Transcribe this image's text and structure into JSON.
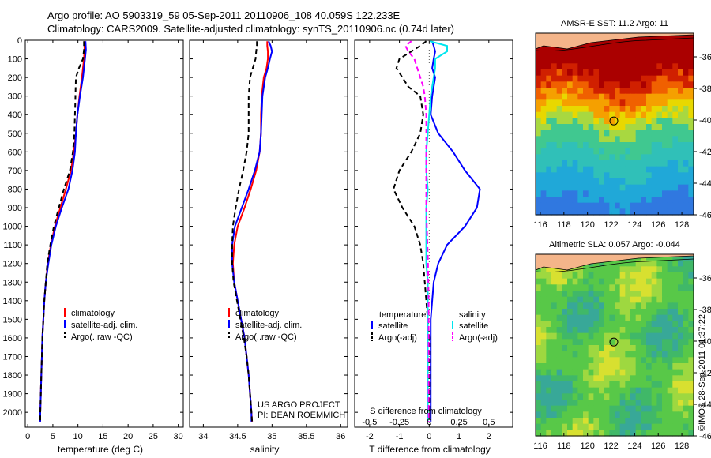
{
  "header": {
    "line1": "Argo profile: AO 5903319_59 05-Sep-2011 20110906_108 40.059S 122.233E",
    "line2": "Climatology: CARS2009. Satellite-adjusted climatology: synTS_20110906.nc (0.74d later)"
  },
  "credit": "©IMOS 28-Sep-2011 01:37:22",
  "colors": {
    "climatology": "#ff0000",
    "satellite": "#0000ff",
    "argo": "#000000",
    "sat_salinity": "#00e5ee",
    "argo_salinity": "#ff00ff",
    "land": "#f4b58a"
  },
  "chart_data": [
    {
      "type": "line",
      "name": "temperature-profile",
      "xlabel": "temperature (deg C)",
      "ylabel": "",
      "xlim": [
        -0.5,
        31
      ],
      "ylim": [
        2080,
        0
      ],
      "xticks": [
        0,
        5,
        10,
        15,
        20,
        25,
        30
      ],
      "yticks": [
        0,
        100,
        200,
        300,
        400,
        500,
        600,
        700,
        800,
        900,
        1000,
        1100,
        1200,
        1300,
        1400,
        1500,
        1600,
        1700,
        1800,
        1900,
        2000
      ],
      "depths": [
        5,
        50,
        100,
        150,
        200,
        300,
        400,
        500,
        600,
        700,
        800,
        900,
        1000,
        1100,
        1200,
        1300,
        1400,
        1500,
        1600,
        1700,
        1800,
        1900,
        2000,
        2050
      ],
      "series": [
        {
          "name": "climatology",
          "color": "#ff0000",
          "dash": "",
          "values": [
            11.3,
            11.3,
            11.2,
            11.0,
            10.8,
            10.3,
            9.9,
            9.6,
            9.2,
            8.6,
            7.6,
            6.5,
            5.4,
            4.6,
            4.0,
            3.6,
            3.3,
            3.1,
            2.9,
            2.8,
            2.7,
            2.6,
            2.5,
            2.5
          ]
        },
        {
          "name": "satellite-adj. clim.",
          "color": "#0000ff",
          "dash": "",
          "values": [
            11.5,
            11.6,
            11.4,
            11.2,
            11.0,
            10.4,
            9.9,
            9.6,
            9.4,
            8.9,
            8.1,
            6.8,
            5.6,
            4.7,
            4.1,
            3.6,
            3.3,
            3.1,
            2.9,
            2.8,
            2.7,
            2.6,
            2.5,
            2.5
          ]
        },
        {
          "name": "Argo(..raw -QC)",
          "color": "#000000",
          "dash": "6,4",
          "values": [
            11.2,
            11.2,
            11.0,
            10.2,
            9.6,
            9.5,
            9.4,
            9.3,
            9.0,
            8.4,
            7.2,
            6.2,
            5.2,
            4.5,
            3.9,
            3.6,
            3.3,
            3.1,
            2.9,
            2.8,
            2.7,
            2.6,
            2.5,
            2.5
          ]
        }
      ],
      "legend": {
        "placement": "lower-middle",
        "entries": [
          "climatology",
          "satellite-adj. clim.",
          "Argo(..raw -QC)"
        ]
      }
    },
    {
      "type": "line",
      "name": "salinity-profile",
      "xlabel": "salinity",
      "ylabel": "",
      "xlim": [
        33.8,
        36.1
      ],
      "ylim": [
        2080,
        0
      ],
      "xticks": [
        34,
        34.5,
        35,
        35.5,
        36
      ],
      "depths": [
        5,
        30,
        60,
        100,
        150,
        200,
        300,
        400,
        500,
        600,
        700,
        800,
        900,
        1000,
        1100,
        1200,
        1300,
        1400,
        1500,
        1600,
        1700,
        1800,
        1900,
        2000,
        2050
      ],
      "series": [
        {
          "name": "climatology",
          "color": "#ff0000",
          "dash": "",
          "values": [
            34.93,
            34.93,
            34.94,
            34.94,
            34.92,
            34.88,
            34.85,
            34.84,
            34.84,
            34.82,
            34.77,
            34.69,
            34.6,
            34.5,
            34.45,
            34.43,
            34.45,
            34.5,
            34.55,
            34.6,
            34.63,
            34.66,
            34.68,
            34.7,
            34.71
          ]
        },
        {
          "name": "satellite-adj. clim.",
          "color": "#0000ff",
          "dash": "",
          "values": [
            34.95,
            34.98,
            35.0,
            34.97,
            34.94,
            34.9,
            34.86,
            34.85,
            34.84,
            34.82,
            34.75,
            34.66,
            34.56,
            34.46,
            34.42,
            34.42,
            34.45,
            34.5,
            34.55,
            34.6,
            34.63,
            34.66,
            34.68,
            34.7,
            34.7
          ]
        },
        {
          "name": "Argo(..raw -QC)",
          "color": "#000000",
          "dash": "6,4",
          "values": [
            34.78,
            34.78,
            34.77,
            34.76,
            34.72,
            34.68,
            34.66,
            34.66,
            34.66,
            34.63,
            34.58,
            34.52,
            34.47,
            34.43,
            34.42,
            34.42,
            34.44,
            34.49,
            34.54,
            34.59,
            34.63,
            34.66,
            34.68,
            34.7,
            34.71
          ]
        }
      ],
      "legend": {
        "placement": "lower-middle",
        "entries": [
          "climatology",
          "satellite-adj. clim.",
          "Argo(..raw -QC)"
        ]
      },
      "annotation": [
        "US ARGO PROJECT",
        "PI: DEAN ROEMMICH"
      ]
    },
    {
      "type": "line",
      "name": "difference-profile",
      "xlabel": "T difference from climatology",
      "xlabel_top": "S difference from climatology",
      "xlim": [
        -2.5,
        2.8
      ],
      "ylim": [
        2080,
        0
      ],
      "xticks": [
        -2,
        -1,
        0,
        1,
        2
      ],
      "xticks_s": [
        "-0.5",
        "-0.25",
        "0",
        "0.25",
        "0.5"
      ],
      "xticks_s_pos": [
        -2,
        -1,
        0,
        1,
        2
      ],
      "depths": [
        5,
        30,
        60,
        100,
        150,
        200,
        250,
        300,
        400,
        500,
        600,
        700,
        800,
        900,
        1000,
        1100,
        1200,
        1300,
        1400,
        1500,
        1600,
        1700,
        1800,
        1900,
        2000,
        2050
      ],
      "series": [
        {
          "name": "temperature satellite",
          "color": "#0000ff",
          "dash": "",
          "values": [
            0.1,
            0.15,
            0.2,
            0.15,
            0.1,
            0.2,
            0.15,
            0.1,
            0.05,
            0.3,
            0.8,
            1.2,
            1.7,
            1.6,
            1.2,
            0.6,
            0.3,
            0.15,
            0.1,
            0.05,
            0.05,
            0.05,
            0.05,
            0.05,
            0.05,
            0.05
          ]
        },
        {
          "name": "temperature Argo(-adj)",
          "color": "#000000",
          "dash": "6,4",
          "values": [
            -0.1,
            -0.3,
            -0.6,
            -1.0,
            -1.1,
            -0.9,
            -0.7,
            -0.3,
            -0.2,
            -0.3,
            -0.6,
            -1.0,
            -1.2,
            -0.9,
            -0.5,
            -0.3,
            -0.2,
            -0.15,
            -0.1,
            -0.05,
            0,
            0,
            0,
            0,
            0,
            0
          ]
        },
        {
          "name": "salinity satellite",
          "color": "#00e5ee",
          "dash": "",
          "values": [
            0.02,
            0.6,
            0.6,
            0.2,
            0.2,
            0.15,
            0.1,
            0.05,
            0.0,
            -0.05,
            -0.1,
            -0.1,
            -0.05,
            -0.1,
            -0.1,
            -0.1,
            -0.1,
            -0.05,
            -0.05,
            -0.05,
            -0.05,
            -0.05,
            -0.05,
            -0.05,
            -0.05,
            -0.05
          ]
        },
        {
          "name": "salinity Argo(-adj)",
          "color": "#ff00ff",
          "dash": "6,4",
          "values": [
            -0.6,
            -0.8,
            -0.7,
            -0.5,
            -0.4,
            -0.3,
            -0.2,
            -0.15,
            -0.1,
            -0.1,
            -0.1,
            -0.1,
            -0.1,
            -0.1,
            -0.08,
            -0.06,
            -0.04,
            -0.03,
            -0.02,
            -0.02,
            -0.02,
            -0.02,
            -0.02,
            -0.02,
            -0.02,
            -0.02
          ]
        }
      ],
      "legend": {
        "placement": "lower-middle",
        "col1_title": "temperature",
        "col2_title": "salinity",
        "entries": [
          "satellite",
          "Argo(-adj)",
          "satellite",
          "Argo(-adj)"
        ]
      }
    },
    {
      "type": "heatmap",
      "name": "sst-map",
      "title": "AMSR-E SST: 11.2 Argo: 11",
      "xlim": [
        115.6,
        129.0
      ],
      "ylim": [
        -46.0,
        -34.5
      ],
      "xticks": [
        116,
        118,
        120,
        122,
        124,
        126,
        128
      ],
      "yticks": [
        -36,
        -38,
        -40,
        -42,
        -44,
        -46
      ],
      "marker": {
        "lon": 122.233,
        "lat": -40.059
      }
    },
    {
      "type": "heatmap",
      "name": "sla-map",
      "title": "Altimetric SLA: 0.057 Argo: -0.044",
      "xlim": [
        115.6,
        129.0
      ],
      "ylim": [
        -46.0,
        -34.5
      ],
      "xticks": [
        116,
        118,
        120,
        122,
        124,
        126,
        128
      ],
      "yticks": [
        -36,
        -38,
        -40,
        -42,
        -44,
        -46
      ],
      "marker": {
        "lon": 122.233,
        "lat": -40.059
      }
    }
  ]
}
